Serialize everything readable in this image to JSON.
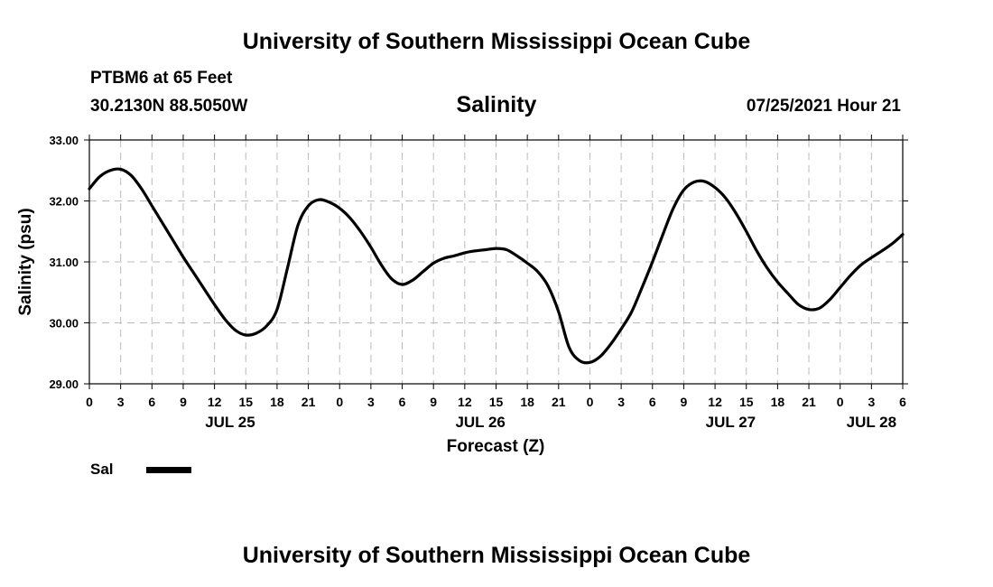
{
  "header": {
    "title": "University of Southern Mississippi Ocean Cube",
    "station": "PTBM6 at 65 Feet",
    "coords": "30.2130N  88.5050W",
    "variable": "Salinity",
    "datetime": "07/25/2021 Hour 21"
  },
  "footer": {
    "title": "University of Southern Mississippi Ocean Cube"
  },
  "chart_data": {
    "type": "line",
    "title": "Salinity",
    "xlabel": "Forecast (Z)",
    "ylabel": "Salinity (psu)",
    "ylim": [
      29.0,
      33.0
    ],
    "xlim": [
      0,
      78
    ],
    "x_unit": "forecast hours from JUL 25 00Z",
    "y_ticks": [
      "29.00",
      "30.00",
      "31.00",
      "32.00",
      "33.00"
    ],
    "x_ticks": [
      {
        "hour": 0,
        "label": "0"
      },
      {
        "hour": 3,
        "label": "3"
      },
      {
        "hour": 6,
        "label": "6"
      },
      {
        "hour": 9,
        "label": "9"
      },
      {
        "hour": 12,
        "label": "12"
      },
      {
        "hour": 15,
        "label": "15"
      },
      {
        "hour": 18,
        "label": "18"
      },
      {
        "hour": 21,
        "label": "21"
      },
      {
        "hour": 24,
        "label": "0"
      },
      {
        "hour": 27,
        "label": "3"
      },
      {
        "hour": 30,
        "label": "6"
      },
      {
        "hour": 33,
        "label": "9"
      },
      {
        "hour": 36,
        "label": "12"
      },
      {
        "hour": 39,
        "label": "15"
      },
      {
        "hour": 42,
        "label": "18"
      },
      {
        "hour": 45,
        "label": "21"
      },
      {
        "hour": 48,
        "label": "0"
      },
      {
        "hour": 51,
        "label": "3"
      },
      {
        "hour": 54,
        "label": "6"
      },
      {
        "hour": 57,
        "label": "9"
      },
      {
        "hour": 60,
        "label": "12"
      },
      {
        "hour": 63,
        "label": "15"
      },
      {
        "hour": 66,
        "label": "18"
      },
      {
        "hour": 69,
        "label": "21"
      },
      {
        "hour": 72,
        "label": "0"
      },
      {
        "hour": 75,
        "label": "3"
      },
      {
        "hour": 78,
        "label": "6"
      }
    ],
    "date_labels": [
      {
        "hour": 13.5,
        "label": "JUL 25"
      },
      {
        "hour": 37.5,
        "label": "JUL 26"
      },
      {
        "hour": 61.5,
        "label": "JUL 27"
      },
      {
        "hour": 75.0,
        "label": "JUL 28"
      }
    ],
    "grid": true,
    "legend": {
      "position": "bottom-left",
      "entries": [
        "Sal"
      ]
    },
    "series": [
      {
        "name": "Sal",
        "x": [
          0,
          1,
          2,
          3,
          4,
          5,
          6,
          7,
          8,
          9,
          10,
          11,
          12,
          13,
          14,
          15,
          16,
          17,
          18,
          19,
          20,
          21,
          22,
          23,
          24,
          25,
          26,
          27,
          28,
          29,
          30,
          31,
          32,
          33,
          34,
          35,
          36,
          37,
          38,
          39,
          40,
          41,
          42,
          43,
          44,
          45,
          46,
          47,
          48,
          49,
          50,
          51,
          52,
          53,
          54,
          55,
          56,
          57,
          58,
          59,
          60,
          61,
          62,
          63,
          64,
          65,
          66,
          67,
          68,
          69,
          70,
          71,
          72,
          73,
          74,
          75,
          76,
          77,
          78
        ],
        "values": [
          32.2,
          32.4,
          32.5,
          32.52,
          32.42,
          32.2,
          31.92,
          31.64,
          31.36,
          31.08,
          30.82,
          30.56,
          30.3,
          30.06,
          29.88,
          29.8,
          29.83,
          29.95,
          30.22,
          30.9,
          31.6,
          31.92,
          32.02,
          31.98,
          31.88,
          31.72,
          31.5,
          31.24,
          30.95,
          30.72,
          30.63,
          30.7,
          30.84,
          30.98,
          31.06,
          31.1,
          31.15,
          31.18,
          31.2,
          31.22,
          31.2,
          31.1,
          30.98,
          30.84,
          30.6,
          30.18,
          29.6,
          29.38,
          29.35,
          29.45,
          29.65,
          29.9,
          30.18,
          30.58,
          31.0,
          31.45,
          31.88,
          32.18,
          32.31,
          32.32,
          32.22,
          32.05,
          31.8,
          31.5,
          31.18,
          30.9,
          30.67,
          30.48,
          30.3,
          30.22,
          30.24,
          30.38,
          30.58,
          30.78,
          30.95,
          31.07,
          31.18,
          31.3,
          31.45
        ]
      }
    ]
  }
}
